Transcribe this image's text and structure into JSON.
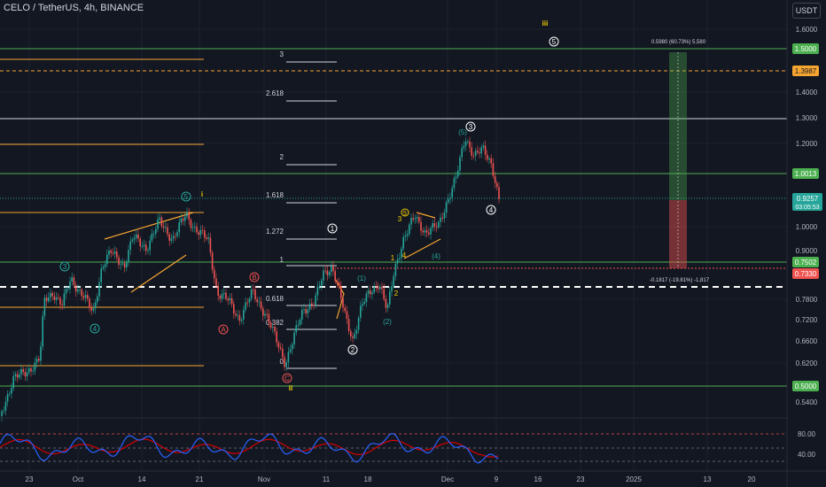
{
  "header": {
    "title": "CELO / TetherUS, 4h, BINANCE",
    "currency": "USDT"
  },
  "colors": {
    "background": "#131722",
    "up": "#26a69a",
    "down": "#ef5350",
    "green_line": "#4caf50",
    "orange_line": "#f7a531",
    "white_line": "#d1d4dc",
    "rsi": "#2962ff",
    "rsi_ma": "#d50000"
  },
  "chart_data": [
    {
      "type": "candlestick",
      "title": "CELO / TetherUS, 4h, BINANCE",
      "y_axis_ticks": [
        "1.6000",
        "1.5000",
        "1.4000",
        "1.3000",
        "1.2000",
        "1.1000",
        "1.0000",
        "0.9000",
        "0.8400",
        "0.7800",
        "0.7200",
        "0.6600",
        "0.6200",
        "0.5800",
        "0.5400",
        "0.5000",
        "0.4750"
      ],
      "x_axis_ticks": [
        "23",
        "Oct",
        "7",
        "14",
        "21",
        "Nov",
        "11",
        "18",
        "Dec",
        "9",
        "16",
        "23",
        "2025",
        "13",
        "20"
      ],
      "price_levels": [
        {
          "label": "1.5000",
          "value": 1.5,
          "color": "#4caf50"
        },
        {
          "label": "1.3987",
          "value": 1.3987,
          "color": "#f7a531"
        },
        {
          "label": "1.0013",
          "value": 1.0013,
          "color": "#4caf50"
        },
        {
          "label": "0.9257",
          "value": 0.9257,
          "color": "#26a69a"
        },
        {
          "label": "03:05:53",
          "value": 0.9,
          "color": "#26a69a"
        },
        {
          "label": "0.7502",
          "value": 0.7502,
          "color": "#4caf50"
        },
        {
          "label": "0.7330",
          "value": 0.733,
          "color": "#ef5350"
        },
        {
          "label": "0.5000",
          "value": 0.5,
          "color": "#4caf50"
        }
      ],
      "fib_labels": [
        "3",
        "2.618",
        "2",
        "1.618",
        "1.272",
        "1",
        "0.618",
        "0.382",
        "0"
      ],
      "wave_labels": [
        "iii",
        "5",
        "i",
        "5",
        "3",
        "4",
        "B",
        "A",
        "C",
        "ii",
        "1",
        "2",
        "(1)",
        "(2)",
        "1",
        "2",
        "3",
        "4",
        "5",
        "(4)",
        "3",
        "(5)",
        "4"
      ],
      "annotations": [
        "0.5980 (60.73%) 5,580",
        "-0.1817 (-19.81%) -1,817"
      ],
      "close_price": 0.9257
    },
    {
      "type": "line",
      "title": "",
      "series": [
        {
          "name": "",
          "color": "#2962ff"
        },
        {
          "name": "",
          "color": "#d50000"
        }
      ],
      "y_axis_ticks": [
        "80.00",
        "40.00"
      ],
      "levels": [
        80,
        50,
        40
      ]
    }
  ]
}
